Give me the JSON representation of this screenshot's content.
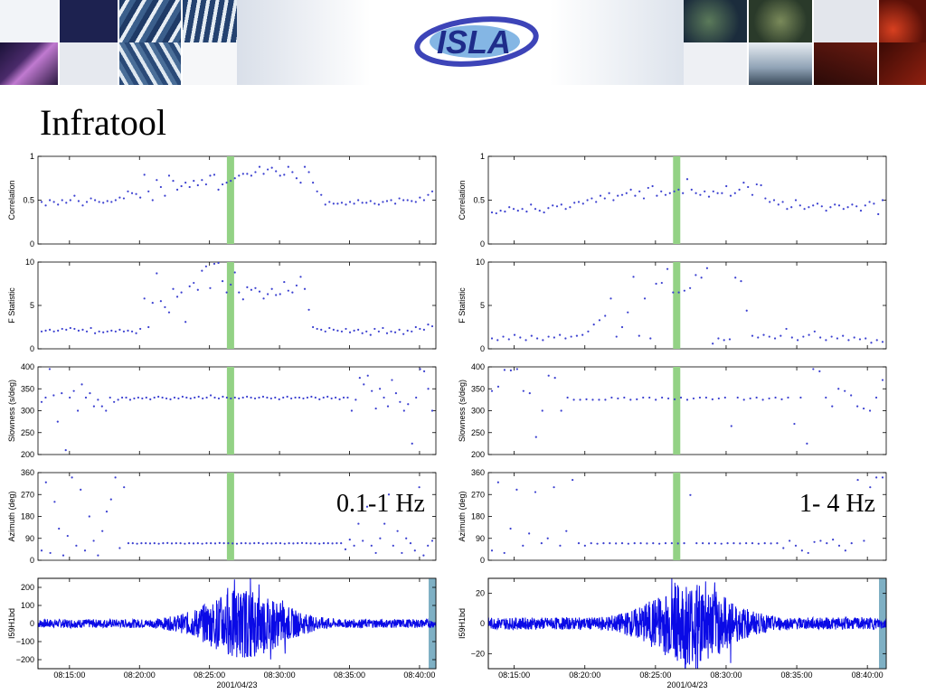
{
  "slide": {
    "title": "Infratool",
    "logo_text": "ISLA"
  },
  "colors": {
    "dots": "#3a3fd0",
    "trace": "#0a0ae6",
    "highlight": "#93d285",
    "end_marker": "#7fb0c4"
  },
  "chart_data": [
    {
      "type": "scatter+line",
      "band_label": "0.1-1 Hz",
      "time_labels": [
        "08:15:00",
        "08:20:00",
        "08:25:00",
        "08:30:00",
        "08:35:00",
        "08:40:00"
      ],
      "date_label": "2001/04/23",
      "highlight_time": "08:26:30",
      "panels": [
        {
          "ylabel": "Correlation",
          "ylim": [
            0,
            1
          ],
          "yticks": [
            "0",
            "0.5",
            "1"
          ],
          "series": [
            0.48,
            0.44,
            0.5,
            0.48,
            0.45,
            0.5,
            0.47,
            0.5,
            0.55,
            0.49,
            0.44,
            0.48,
            0.52,
            0.5,
            0.48,
            0.47,
            0.49,
            0.48,
            0.5,
            0.53,
            0.52,
            0.6,
            0.58,
            0.57,
            0.53,
            0.79,
            0.6,
            0.5,
            0.73,
            0.65,
            0.55,
            0.78,
            0.72,
            0.62,
            0.66,
            0.7,
            0.65,
            0.72,
            0.67,
            0.73,
            0.68,
            0.78,
            0.79,
            0.62,
            0.68,
            0.7,
            0.72,
            0.75,
            0.78,
            0.8,
            0.8,
            0.78,
            0.82,
            0.88,
            0.8,
            0.85,
            0.87,
            0.83,
            0.78,
            0.79,
            0.88,
            0.82,
            0.75,
            0.7,
            0.88,
            0.82,
            0.7,
            0.6,
            0.56,
            0.45,
            0.48,
            0.46,
            0.46,
            0.47,
            0.45,
            0.48,
            0.46,
            0.5,
            0.47,
            0.47,
            0.49,
            0.46,
            0.45,
            0.48,
            0.49,
            0.5,
            0.46,
            0.52,
            0.5,
            0.5,
            0.49,
            0.48,
            0.53,
            0.5,
            0.56,
            0.6
          ]
        },
        {
          "ylabel": "F Statistic",
          "ylim": [
            0,
            10
          ],
          "yticks": [
            "0",
            "5",
            "10"
          ],
          "series": [
            2.0,
            2.1,
            2.2,
            2.0,
            2.1,
            2.3,
            2.2,
            2.4,
            2.3,
            2.1,
            2.2,
            2.0,
            2.4,
            1.8,
            2.0,
            1.9,
            2.0,
            2.1,
            2.0,
            2.2,
            2.0,
            2.1,
            2.0,
            1.8,
            2.3,
            5.8,
            2.5,
            5.3,
            8.7,
            5.5,
            4.8,
            4.2,
            6.9,
            6.0,
            6.5,
            3.1,
            7.2,
            7.6,
            6.8,
            9.0,
            9.5,
            7.0,
            9.8,
            9.9,
            7.8,
            6.5,
            7.4,
            8.8,
            6.5,
            5.7,
            7.1,
            6.8,
            7.0,
            6.6,
            5.8,
            6.3,
            6.9,
            6.2,
            6.3,
            7.7,
            6.7,
            6.5,
            7.3,
            8.3,
            6.9,
            4.5,
            2.5,
            2.3,
            2.2,
            2.0,
            2.4,
            2.2,
            2.1,
            2.0,
            2.3,
            1.9,
            2.1,
            2.2,
            1.8,
            2.0,
            1.6,
            2.3,
            2.0,
            2.4,
            1.8,
            2.0,
            1.9,
            2.2,
            1.7,
            2.1,
            2.0,
            2.5,
            2.3,
            2.2,
            2.8,
            2.6
          ]
        },
        {
          "ylabel": "Slowness (s/deg)",
          "ylim": [
            200,
            400
          ],
          "yticks": [
            "200",
            "250",
            "300",
            "350",
            "400"
          ],
          "series": [
            320,
            330,
            395,
            335,
            275,
            340,
            210,
            330,
            345,
            300,
            360,
            330,
            340,
            310,
            325,
            310,
            300,
            330,
            320,
            325,
            330,
            330,
            325,
            328,
            330,
            328,
            330,
            326,
            330,
            332,
            330,
            328,
            326,
            330,
            328,
            332,
            330,
            328,
            330,
            332,
            328,
            330,
            335,
            330,
            328,
            332,
            330,
            328,
            330,
            328,
            330,
            332,
            330,
            328,
            330,
            332,
            330,
            328,
            330,
            326,
            330,
            332,
            328,
            330,
            330,
            328,
            330,
            332,
            330,
            326,
            330,
            332,
            328,
            330,
            326,
            330,
            330,
            300,
            325,
            375,
            360,
            380,
            345,
            305,
            350,
            330,
            310,
            370,
            340,
            320,
            300,
            315,
            225,
            330,
            395,
            390,
            350,
            300
          ]
        },
        {
          "ylabel": "Azimuth (deg)",
          "ylim": [
            0,
            360
          ],
          "yticks": [
            "0",
            "90",
            "180",
            "270",
            "360"
          ],
          "series": [
            40,
            320,
            30,
            240,
            130,
            20,
            100,
            340,
            60,
            290,
            40,
            180,
            80,
            20,
            120,
            200,
            250,
            340,
            50,
            300,
            70,
            70,
            68,
            70,
            70,
            69,
            70,
            68,
            70,
            71,
            69,
            70,
            70,
            68,
            70,
            69,
            70,
            68,
            70,
            70,
            69,
            71,
            70,
            70,
            69,
            68,
            70,
            70,
            69,
            70,
            71,
            68,
            70,
            69,
            70,
            70,
            68,
            70,
            69,
            70,
            71,
            70,
            69,
            70,
            68,
            70,
            70,
            69,
            70,
            70,
            45,
            85,
            60,
            150,
            80,
            220,
            60,
            30,
            90,
            150,
            270,
            60,
            120,
            30,
            90,
            70,
            40,
            300,
            20,
            60,
            80
          ]
        },
        {
          "ylabel": "I59H1bd",
          "ylim": [
            -250,
            250
          ],
          "yticks": [
            "−200",
            "−100",
            "0",
            "100",
            "200"
          ],
          "waveform_amplitude_ref": 200
        }
      ]
    },
    {
      "type": "scatter+line",
      "band_label": "1- 4 Hz",
      "time_labels": [
        "08:15:00",
        "08:20:00",
        "08:25:00",
        "08:30:00",
        "08:35:00",
        "08:40:00"
      ],
      "date_label": "2001/04/23",
      "highlight_time": "08:26:30",
      "panels": [
        {
          "ylabel": "Correlation",
          "ylim": [
            0,
            1
          ],
          "yticks": [
            "0",
            "0.5",
            "1"
          ],
          "series": [
            0.36,
            0.35,
            0.38,
            0.37,
            0.42,
            0.4,
            0.38,
            0.4,
            0.37,
            0.45,
            0.4,
            0.38,
            0.36,
            0.41,
            0.44,
            0.43,
            0.45,
            0.4,
            0.42,
            0.47,
            0.48,
            0.46,
            0.5,
            0.52,
            0.48,
            0.55,
            0.52,
            0.58,
            0.5,
            0.55,
            0.56,
            0.58,
            0.62,
            0.55,
            0.6,
            0.52,
            0.64,
            0.66,
            0.55,
            0.6,
            0.56,
            0.58,
            0.6,
            0.62,
            0.58,
            0.74,
            0.62,
            0.58,
            0.56,
            0.6,
            0.54,
            0.6,
            0.58,
            0.58,
            0.66,
            0.55,
            0.58,
            0.62,
            0.7,
            0.65,
            0.56,
            0.68,
            0.67,
            0.52,
            0.48,
            0.5,
            0.45,
            0.48,
            0.4,
            0.42,
            0.5,
            0.44,
            0.4,
            0.42,
            0.44,
            0.46,
            0.43,
            0.38,
            0.42,
            0.45,
            0.44,
            0.4,
            0.42,
            0.45,
            0.43,
            0.38,
            0.44,
            0.48,
            0.46,
            0.34,
            0.5
          ]
        },
        {
          "ylabel": "F Statistic",
          "ylim": [
            0,
            10
          ],
          "yticks": [
            "0",
            "5",
            "10"
          ],
          "series": [
            1.2,
            1.0,
            1.4,
            1.1,
            1.6,
            1.3,
            1.0,
            1.5,
            1.2,
            1.0,
            1.4,
            1.3,
            1.6,
            1.2,
            1.4,
            1.5,
            1.6,
            2.0,
            2.8,
            3.3,
            3.8,
            5.8,
            1.4,
            2.5,
            4.2,
            8.3,
            1.5,
            5.8,
            1.2,
            7.5,
            7.6,
            9.2,
            6.5,
            6.5,
            6.7,
            7.0,
            8.5,
            8.2,
            9.3,
            0.6,
            1.2,
            1.0,
            1.1,
            8.2,
            7.8,
            4.4,
            1.5,
            1.3,
            1.6,
            1.4,
            1.2,
            1.5,
            2.3,
            1.3,
            1.0,
            1.4,
            1.6,
            2.0,
            1.3,
            1.0,
            1.4,
            1.2,
            1.5,
            1.0,
            1.3,
            1.1,
            1.2,
            0.7,
            1.0,
            0.8
          ]
        },
        {
          "ylabel": "Slowness (s/deg)",
          "ylim": [
            200,
            400
          ],
          "yticks": [
            "200",
            "250",
            "300",
            "350",
            "400"
          ],
          "series": [
            345,
            355,
            393,
            392,
            395,
            345,
            340,
            240,
            300,
            380,
            375,
            300,
            330,
            325,
            325,
            326,
            325,
            325,
            325,
            330,
            328,
            330,
            325,
            326,
            330,
            330,
            325,
            330,
            328,
            326,
            330,
            325,
            328,
            330,
            330,
            326,
            328,
            330,
            265,
            330,
            325,
            328,
            330,
            325,
            328,
            330,
            326,
            330,
            270,
            330,
            225,
            395,
            390,
            330,
            310,
            350,
            345,
            335,
            310,
            305,
            300,
            330,
            370
          ]
        },
        {
          "ylabel": "Azimuth (deg)",
          "ylim": [
            0,
            360
          ],
          "yticks": [
            "0",
            "90",
            "180",
            "270",
            "360"
          ],
          "series": [
            40,
            320,
            30,
            130,
            290,
            60,
            110,
            280,
            70,
            90,
            300,
            60,
            120,
            330,
            70,
            60,
            70,
            68,
            70,
            70,
            69,
            70,
            68,
            70,
            70,
            69,
            70,
            68,
            70,
            70,
            69,
            70,
            268,
            70,
            70,
            69,
            70,
            68,
            70,
            70,
            69,
            70,
            70,
            68,
            70,
            69,
            70,
            50,
            80,
            60,
            40,
            30,
            75,
            80,
            70,
            85,
            60,
            40,
            70,
            330,
            80,
            300,
            340,
            340
          ]
        },
        {
          "ylabel": "I59H1bd",
          "ylim": [
            -30,
            30
          ],
          "yticks": [
            "−20",
            "0",
            "20"
          ],
          "waveform_amplitude_ref": 25
        }
      ]
    }
  ]
}
